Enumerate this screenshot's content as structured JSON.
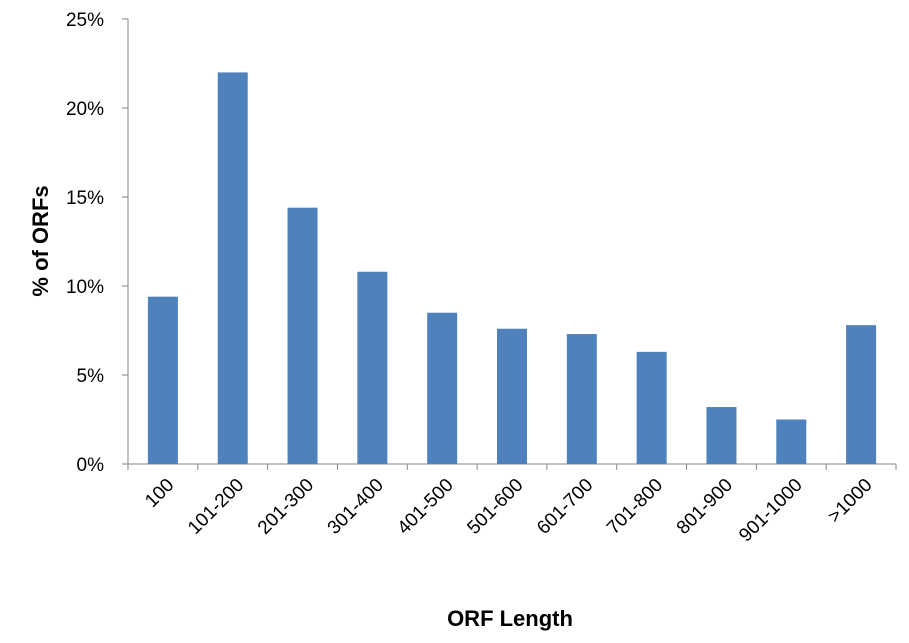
{
  "chart_data": {
    "type": "bar",
    "title": "",
    "xlabel": "ORF Length",
    "ylabel": "% of ORFs",
    "categories": [
      "100",
      "101-200",
      "201-300",
      "301-400",
      "401-500",
      "501-600",
      "601-700",
      "701-800",
      "801-900",
      "901-1000",
      ">1000"
    ],
    "values": [
      9.4,
      22.0,
      14.4,
      10.8,
      8.5,
      7.6,
      7.3,
      6.3,
      3.2,
      2.5,
      7.8
    ],
    "ylim": [
      0,
      25
    ],
    "yticks": [
      0,
      5,
      10,
      15,
      20,
      25
    ],
    "ytick_labels": [
      "0%",
      "5%",
      "10%",
      "15%",
      "20%",
      "25%"
    ],
    "grid": false,
    "legend": "none",
    "colors": {
      "bar": "#4f81bd",
      "axis": "#868686"
    }
  }
}
